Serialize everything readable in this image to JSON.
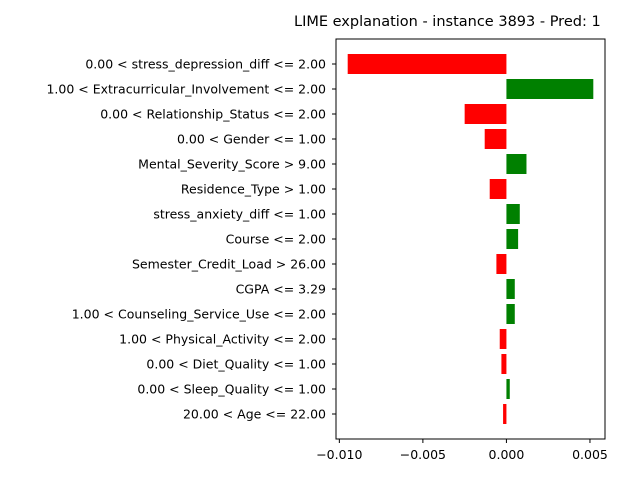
{
  "chart_data": {
    "type": "bar",
    "orientation": "horizontal",
    "title": "LIME explanation - instance 3893 - Pred: 1",
    "xlabel": "",
    "ylabel": "",
    "xlim": [
      -0.0102,
      0.0059
    ],
    "xticks": [
      -0.01,
      -0.005,
      0.0,
      0.005
    ],
    "xtick_labels": [
      "−0.010",
      "−0.005",
      "0.000",
      "0.005"
    ],
    "grid": false,
    "legend": "none",
    "colors": {
      "positive": "#008000",
      "negative": "#ff0000"
    },
    "categories": [
      "0.00 < stress_depression_diff <= 2.00",
      "1.00 < Extracurricular_Involvement <= 2.00",
      "0.00 < Relationship_Status <= 2.00",
      "0.00 < Gender <= 1.00",
      "Mental_Severity_Score > 9.00",
      "Residence_Type > 1.00",
      "stress_anxiety_diff <= 1.00",
      "Course <= 2.00",
      "Semester_Credit_Load > 26.00",
      "CGPA <= 3.29",
      "1.00 < Counseling_Service_Use <= 2.00",
      "1.00 < Physical_Activity <= 2.00",
      "0.00 < Diet_Quality <= 1.00",
      "0.00 < Sleep_Quality <= 1.00",
      "20.00 < Age <= 22.00"
    ],
    "values": [
      -0.0095,
      0.0052,
      -0.0025,
      -0.0013,
      0.0012,
      -0.001,
      0.0008,
      0.0007,
      -0.0006,
      0.0005,
      0.0005,
      -0.0004,
      -0.0003,
      0.0002,
      -0.0002
    ]
  }
}
